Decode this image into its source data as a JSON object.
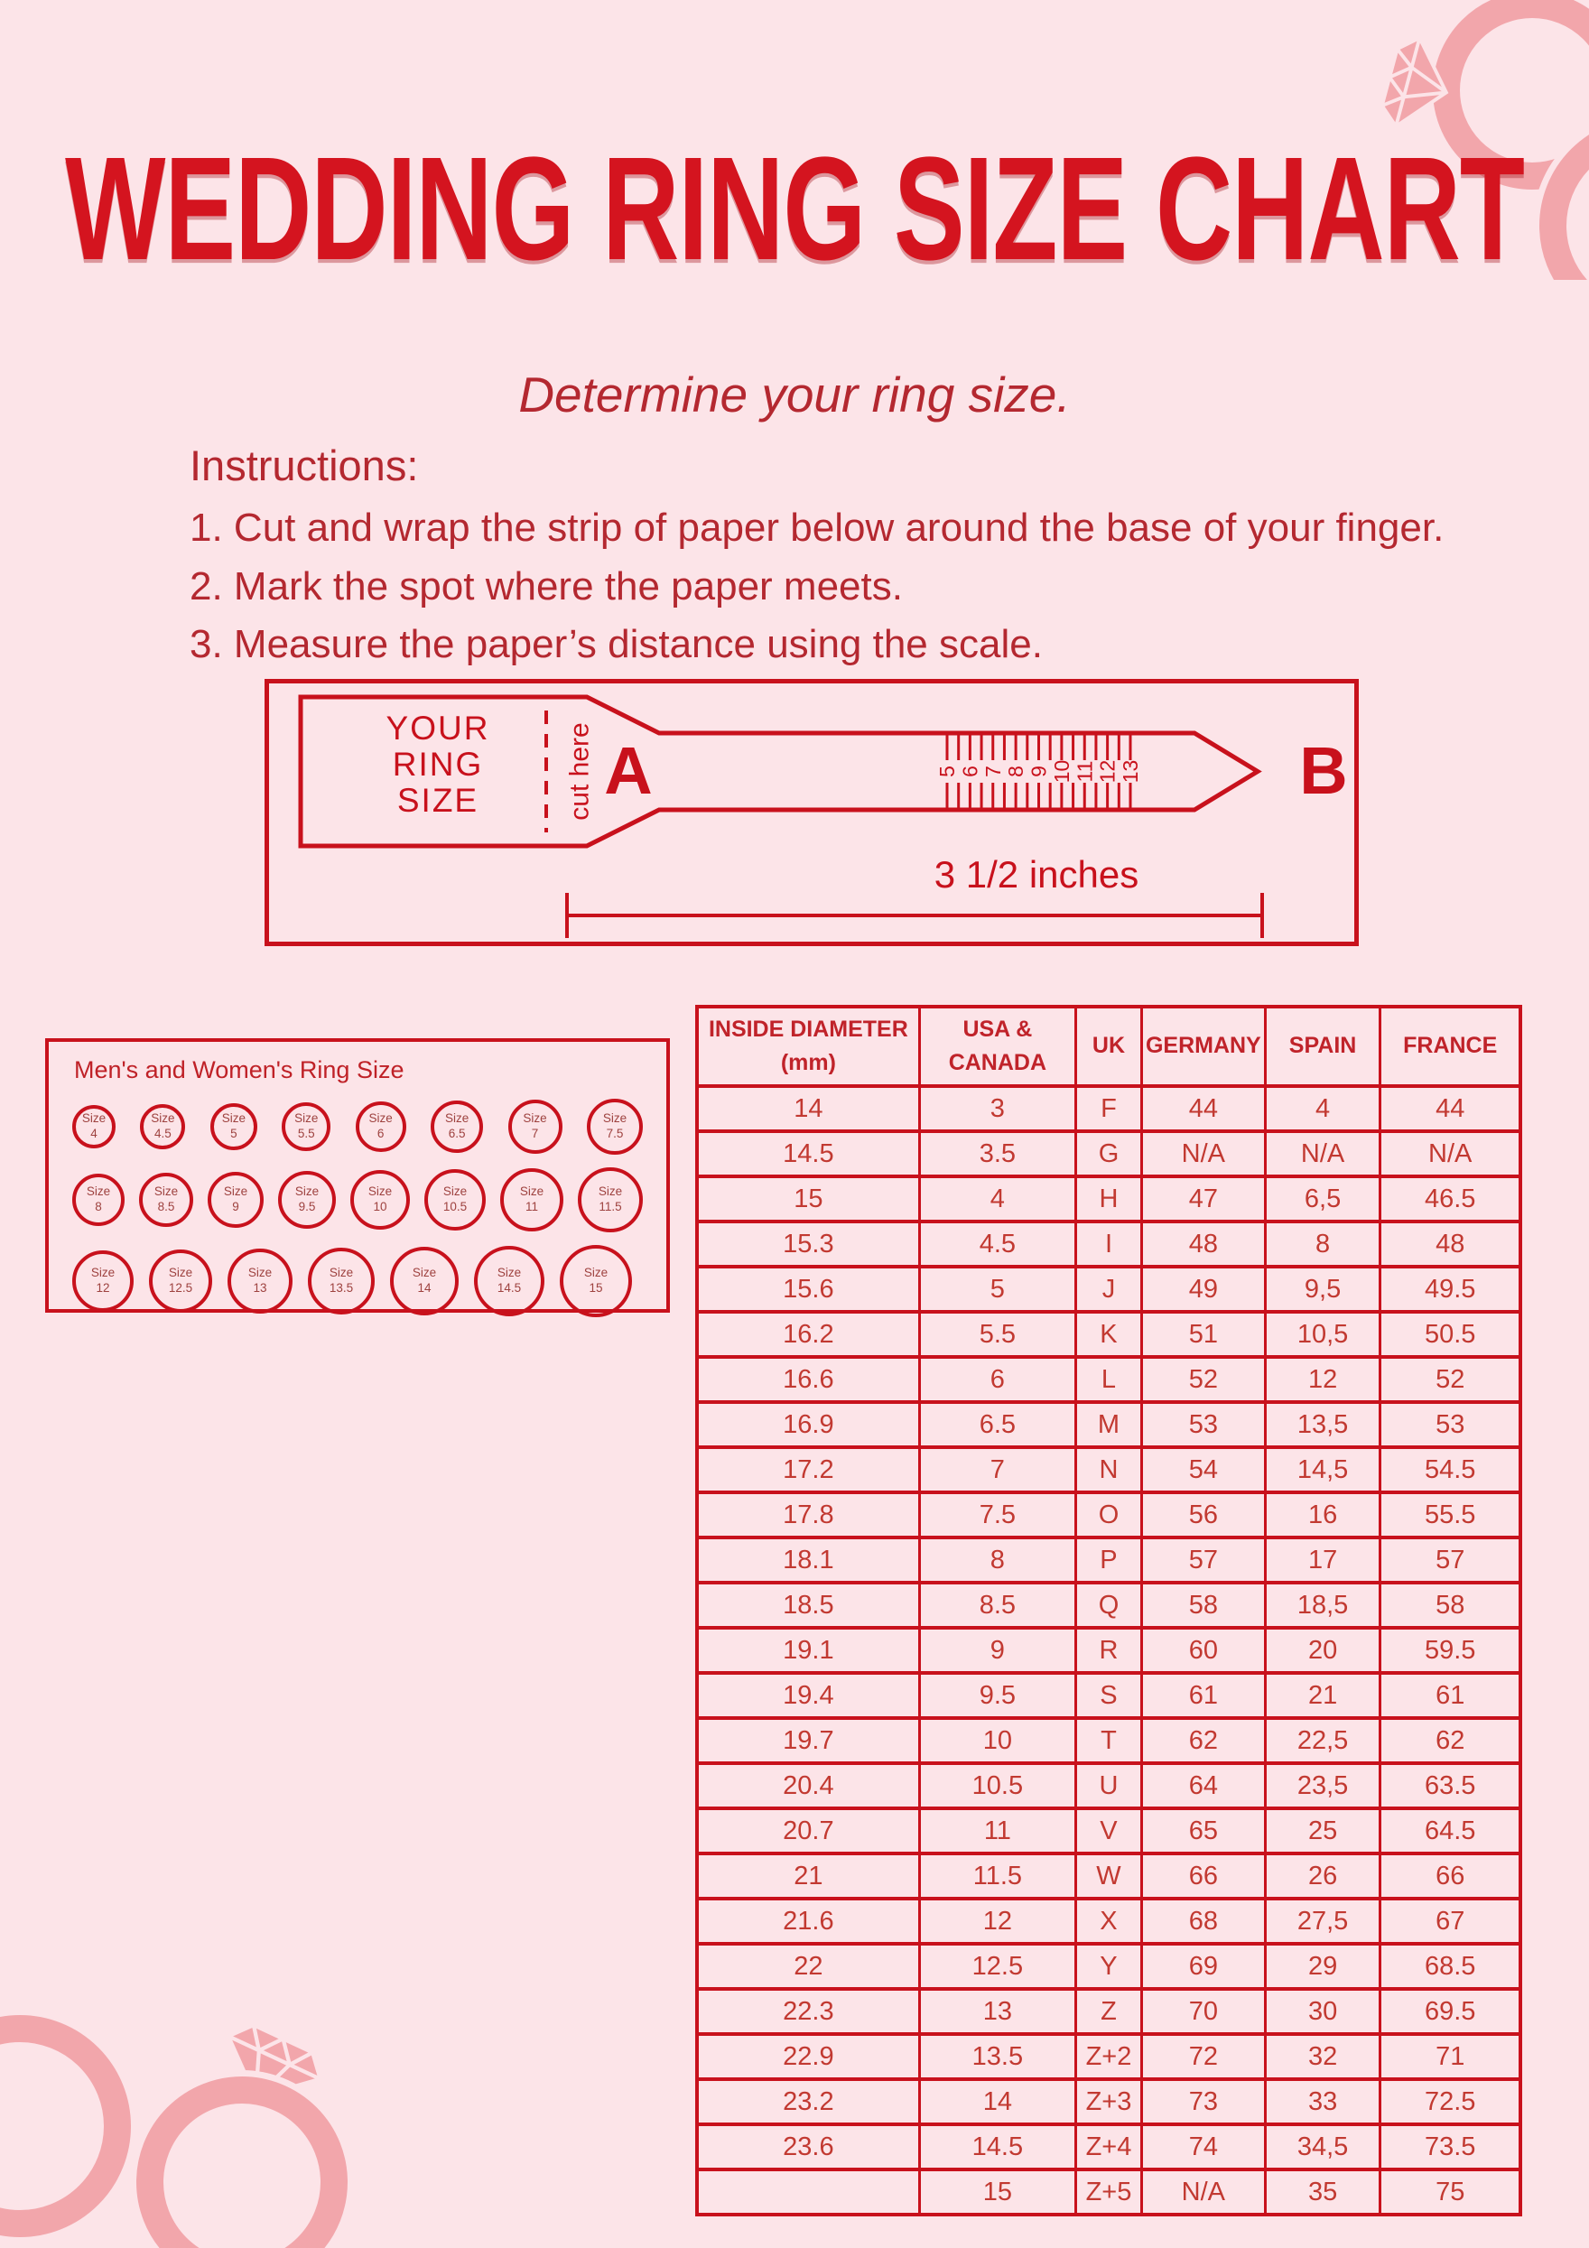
{
  "colors": {
    "background": "#fce4e8",
    "accent_red": "#c8111c",
    "title_red": "#d4141f",
    "text_red": "#b42830",
    "table_text_red": "#c23931",
    "decoration_pink": "#f2a6ab"
  },
  "header": {
    "title": "WEDDING RING SIZE CHART",
    "subtitle": "Determine your ring size."
  },
  "instructions": {
    "heading": "Instructions:",
    "steps": [
      "1. Cut and wrap the strip of paper below around the base of your finger.",
      "2. Mark the spot where the paper meets.",
      "3. Measure the paper’s distance using the scale."
    ]
  },
  "sizer": {
    "ring_label_lines": [
      "YOUR",
      "RING",
      "SIZE"
    ],
    "cut_label": "cut here",
    "point_a": "A",
    "point_b": "B",
    "scale_numbers": [
      "5",
      "6",
      "7",
      "8",
      "9",
      "10",
      "11",
      "12",
      "13"
    ],
    "length_label": "3 1/2 inches"
  },
  "circle_chart": {
    "title": "Men's and Women's Ring Size",
    "size_word": "Size",
    "rows": [
      [
        "4",
        "4.5",
        "5",
        "5.5",
        "6",
        "6.5",
        "7",
        "7.5"
      ],
      [
        "8",
        "8.5",
        "9",
        "9.5",
        "10",
        "10.5",
        "11",
        "11.5"
      ],
      [
        "12",
        "12.5",
        "13",
        "13.5",
        "14",
        "14.5",
        "15"
      ]
    ]
  },
  "conversion_table": {
    "headers": [
      "INSIDE DIAMETER\n(mm)",
      "USA &\nCANADA",
      "UK",
      "GERMANY",
      "SPAIN",
      "FRANCE"
    ],
    "rows": [
      [
        "14",
        "3",
        "F",
        "44",
        "4",
        "44"
      ],
      [
        "14.5",
        "3.5",
        "G",
        "N/A",
        "N/A",
        "N/A"
      ],
      [
        "15",
        "4",
        "H",
        "47",
        "6,5",
        "46.5"
      ],
      [
        "15.3",
        "4.5",
        "I",
        "48",
        "8",
        "48"
      ],
      [
        "15.6",
        "5",
        "J",
        "49",
        "9,5",
        "49.5"
      ],
      [
        "16.2",
        "5.5",
        "K",
        "51",
        "10,5",
        "50.5"
      ],
      [
        "16.6",
        "6",
        "L",
        "52",
        "12",
        "52"
      ],
      [
        "16.9",
        "6.5",
        "M",
        "53",
        "13,5",
        "53"
      ],
      [
        "17.2",
        "7",
        "N",
        "54",
        "14,5",
        "54.5"
      ],
      [
        "17.8",
        "7.5",
        "O",
        "56",
        "16",
        "55.5"
      ],
      [
        "18.1",
        "8",
        "P",
        "57",
        "17",
        "57"
      ],
      [
        "18.5",
        "8.5",
        "Q",
        "58",
        "18,5",
        "58"
      ],
      [
        "19.1",
        "9",
        "R",
        "60",
        "20",
        "59.5"
      ],
      [
        "19.4",
        "9.5",
        "S",
        "61",
        "21",
        "61"
      ],
      [
        "19.7",
        "10",
        "T",
        "62",
        "22,5",
        "62"
      ],
      [
        "20.4",
        "10.5",
        "U",
        "64",
        "23,5",
        "63.5"
      ],
      [
        "20.7",
        "11",
        "V",
        "65",
        "25",
        "64.5"
      ],
      [
        "21",
        "11.5",
        "W",
        "66",
        "26",
        "66"
      ],
      [
        "21.6",
        "12",
        "X",
        "68",
        "27,5",
        "67"
      ],
      [
        "22",
        "12.5",
        "Y",
        "69",
        "29",
        "68.5"
      ],
      [
        "22.3",
        "13",
        "Z",
        "70",
        "30",
        "69.5"
      ],
      [
        "22.9",
        "13.5",
        "Z+2",
        "72",
        "32",
        "71"
      ],
      [
        "23.2",
        "14",
        "Z+3",
        "73",
        "33",
        "72.5"
      ],
      [
        "23.6",
        "14.5",
        "Z+4",
        "74",
        "34,5",
        "73.5"
      ],
      [
        "",
        "15",
        "Z+5",
        "N/A",
        "35",
        "75"
      ]
    ]
  }
}
